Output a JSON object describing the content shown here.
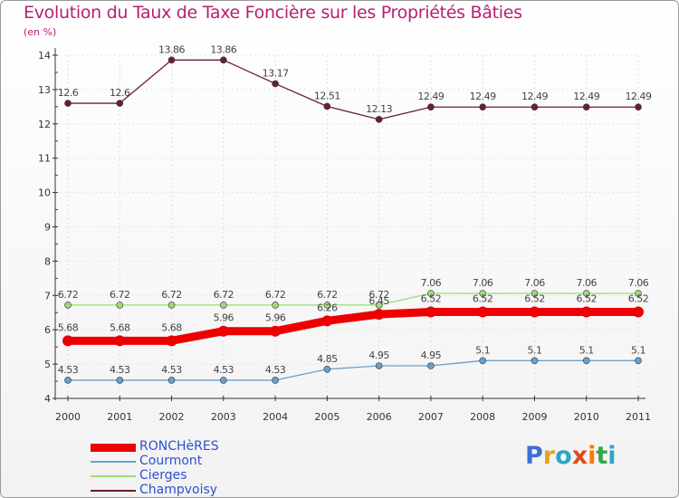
{
  "chart_data": {
    "type": "line",
    "title": "Evolution du Taux de Taxe Foncière sur les Propriétés Bâties",
    "ylabel": "(en %)",
    "xlabel": "",
    "x": [
      "2000",
      "2001",
      "2002",
      "2003",
      "2004",
      "2005",
      "2006",
      "2007",
      "2008",
      "2009",
      "2010",
      "2011"
    ],
    "ylim": [
      4,
      14
    ],
    "yticks": [
      "4",
      "5",
      "6",
      "7",
      "8",
      "9",
      "10",
      "11",
      "12",
      "13",
      "14"
    ],
    "series": [
      {
        "name": "Champvoisy",
        "color": "#6b1f2a",
        "values": [
          12.6,
          12.6,
          13.86,
          13.86,
          13.17,
          12.51,
          12.13,
          12.49,
          12.49,
          12.49,
          12.49,
          12.49
        ],
        "labels": [
          "12.6",
          "12.6",
          "13.86",
          "13.86",
          "13.17",
          "12.51",
          "12.13",
          "12.49",
          "12.49",
          "12.49",
          "12.49",
          "12.49"
        ]
      },
      {
        "name": "Cierges",
        "color": "#99dd77",
        "values": [
          6.72,
          6.72,
          6.72,
          6.72,
          6.72,
          6.72,
          6.72,
          7.06,
          7.06,
          7.06,
          7.06,
          7.06
        ],
        "labels": [
          "6.72",
          "6.72",
          "6.72",
          "6.72",
          "6.72",
          "6.72",
          "6.72",
          "7.06",
          "7.06",
          "7.06",
          "7.06",
          "7.06"
        ]
      },
      {
        "name": "Courmont",
        "color": "#6a9fcc",
        "values": [
          4.53,
          4.53,
          4.53,
          4.53,
          4.53,
          4.85,
          4.95,
          4.95,
          5.1,
          5.1,
          5.1,
          5.1
        ],
        "labels": [
          "4.53",
          "4.53",
          "4.53",
          "4.53",
          "4.53",
          "4.85",
          "4.95",
          "4.95",
          "5.1",
          "5.1",
          "5.1",
          "5.1"
        ]
      },
      {
        "name": "RONCHèRES",
        "color": "#ee0000",
        "values": [
          5.68,
          5.68,
          5.68,
          5.96,
          5.96,
          6.26,
          6.45,
          6.52,
          6.52,
          6.52,
          6.52,
          6.52
        ],
        "labels": [
          "5.68",
          "5.68",
          "5.68",
          "5.96",
          "5.96",
          "6.26",
          "6.45",
          "6.52",
          "6.52",
          "6.52",
          "6.52",
          "6.52"
        ]
      }
    ]
  },
  "legend": [
    {
      "label": "RONCHèRES",
      "color": "#ee0000",
      "text_color": "#2e50d0"
    },
    {
      "label": "Courmont",
      "color": "#6a9fcc",
      "text_color": "#2e50d0"
    },
    {
      "label": "Cierges",
      "color": "#99dd77",
      "text_color": "#2e50d0"
    },
    {
      "label": "Champvoisy",
      "color": "#6b1f2a",
      "text_color": "#2e50d0"
    }
  ],
  "logo": {
    "text": "Proxiti",
    "colors": [
      "#3a6fd8",
      "#e8a21a",
      "#2aa7c9",
      "#e24a1b",
      "#ff7700",
      "#37a64a",
      "#2aa7c9"
    ]
  }
}
